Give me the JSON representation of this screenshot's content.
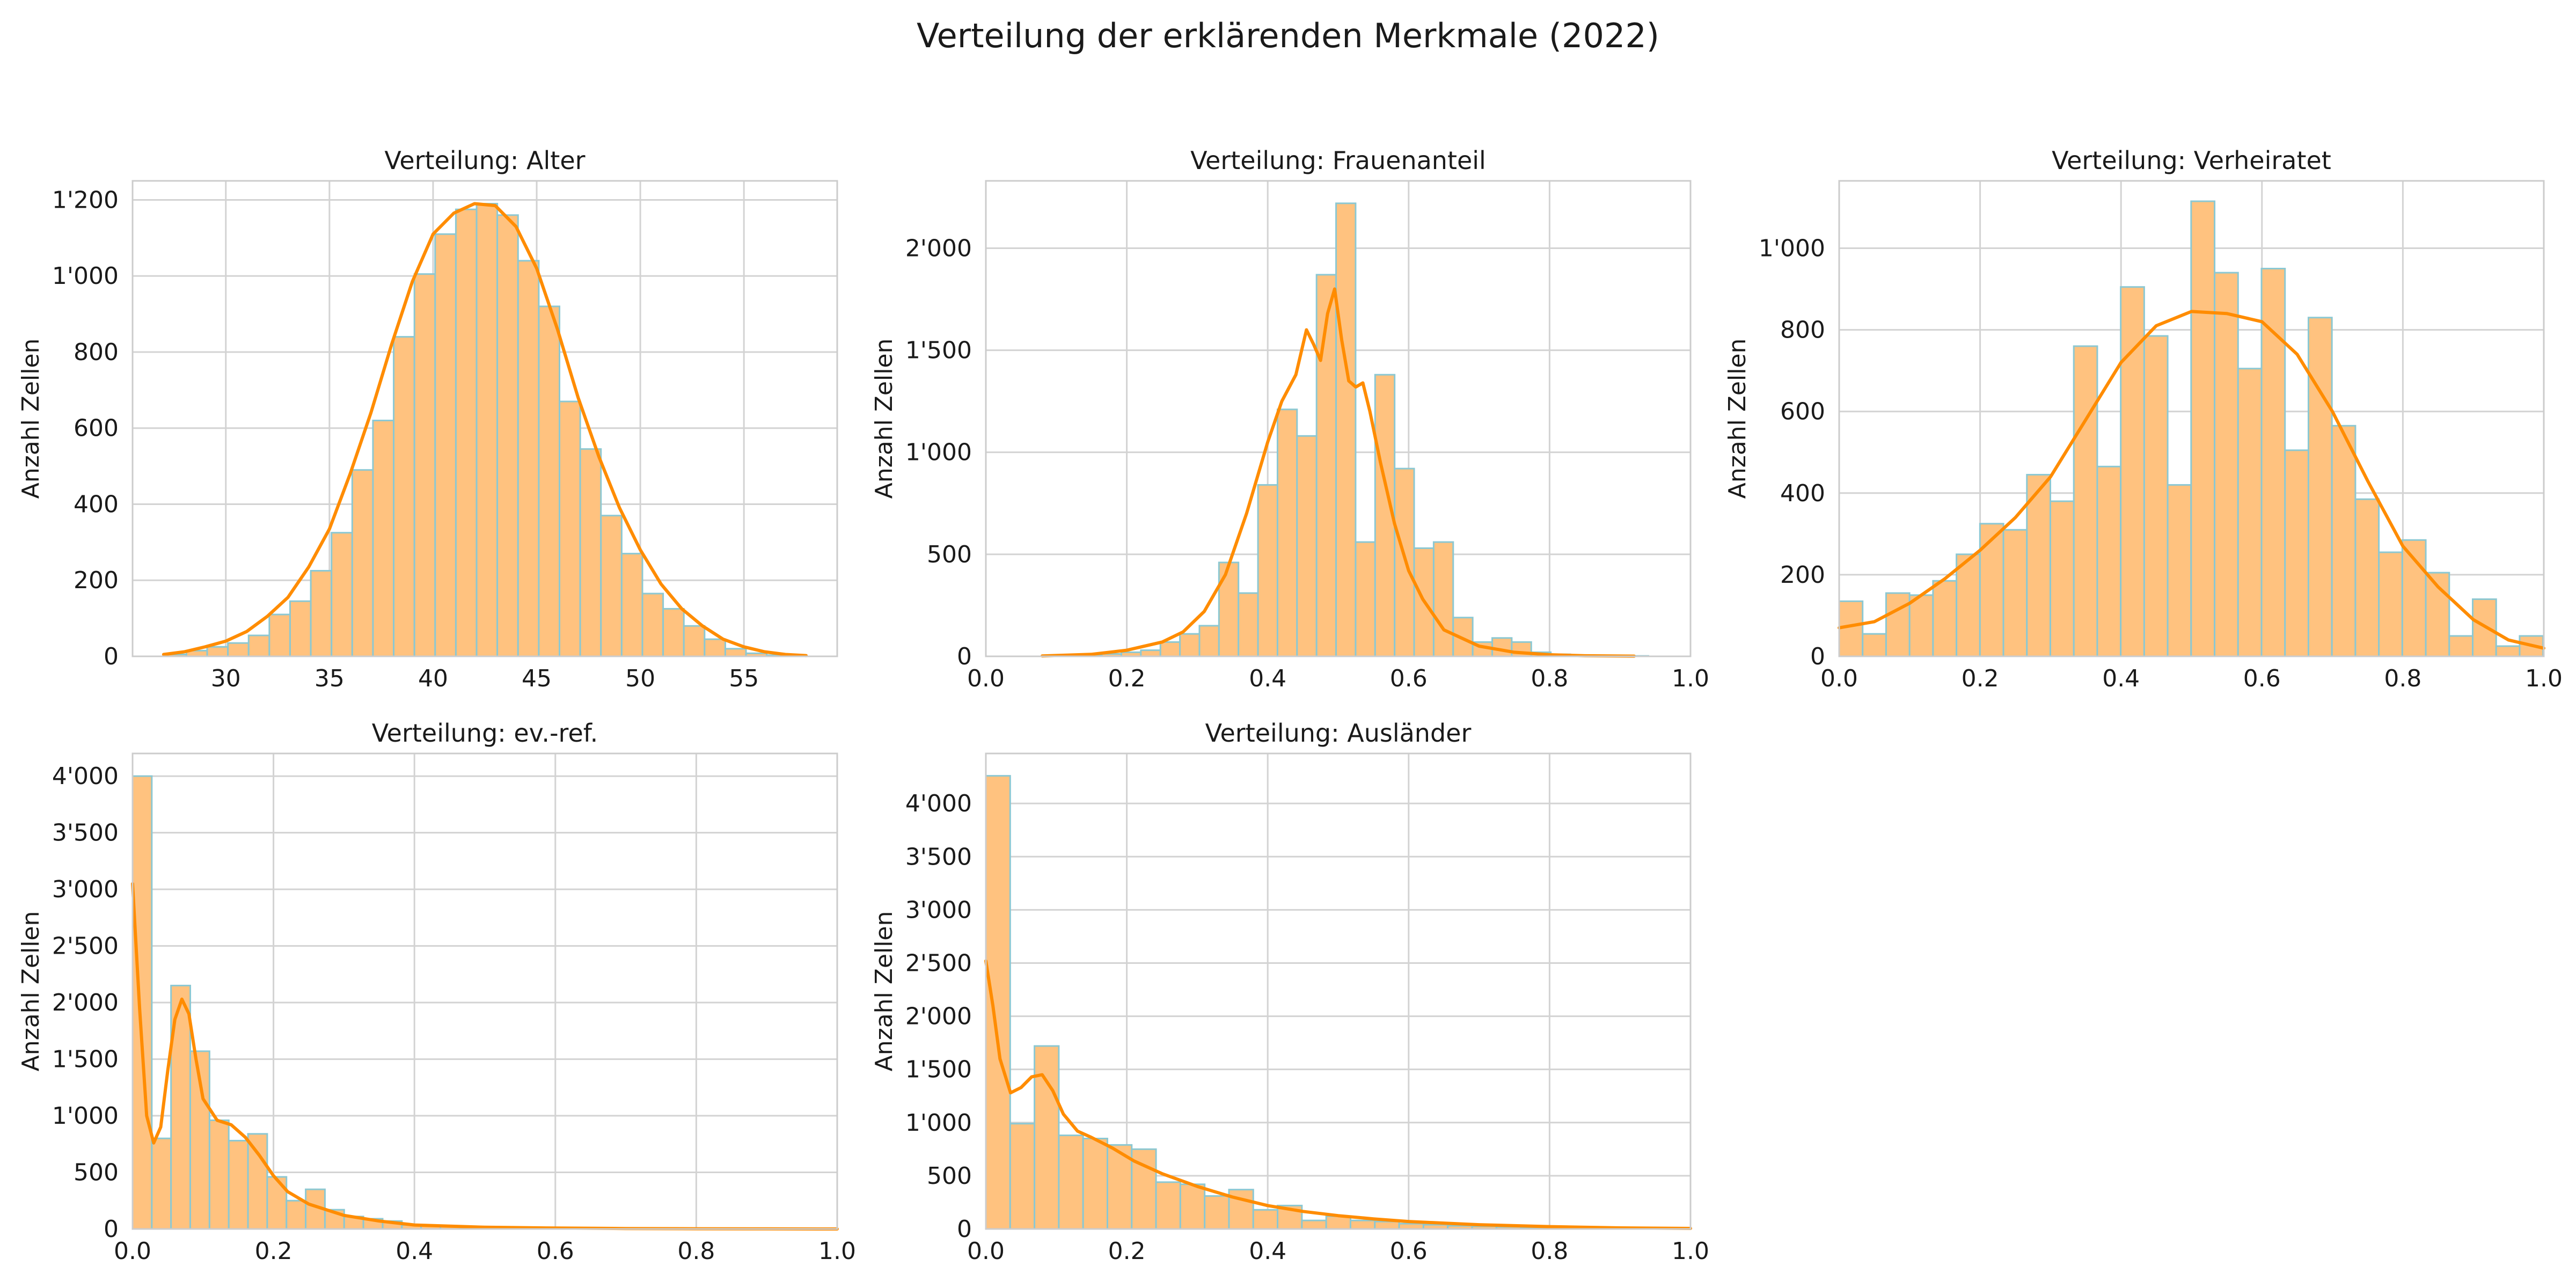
{
  "suptitle": "Verteilung der erklärenden Merkmale (2022)",
  "colors": {
    "bar_fill": "#ffc27f",
    "bar_edge": "#8cc8d2",
    "kde": "#ff8c00",
    "grid": "#d3d3d3",
    "frame": "#cccccc"
  },
  "chart_data": [
    {
      "type": "bar",
      "title": "Verteilung: Alter",
      "ylabel": "Anzahl Zellen",
      "xlim": [
        25.5,
        59.5
      ],
      "ylim": [
        0,
        1250
      ],
      "xticks": [
        30,
        35,
        40,
        45,
        50,
        55
      ],
      "xtick_labels": [
        "30",
        "35",
        "40",
        "45",
        "50",
        "55"
      ],
      "yticks": [
        0,
        200,
        400,
        600,
        800,
        1000,
        1200
      ],
      "ytick_labels": [
        "0",
        "200",
        "400",
        "600",
        "800",
        "1'000",
        "1'200"
      ],
      "bin_start": 27.1,
      "bin_width": 1.0,
      "values": [
        5,
        15,
        25,
        35,
        55,
        110,
        145,
        225,
        325,
        490,
        620,
        840,
        1005,
        1110,
        1175,
        1190,
        1160,
        1040,
        920,
        670,
        545,
        370,
        270,
        165,
        125,
        80,
        45,
        20,
        8,
        3
      ],
      "kde_x": [
        27,
        28,
        29,
        30,
        31,
        32,
        33,
        34,
        35,
        36,
        37,
        38,
        39,
        40,
        41,
        42,
        43,
        44,
        45,
        46,
        47,
        48,
        49,
        50,
        51,
        52,
        53,
        54,
        55,
        56,
        57,
        58
      ],
      "kde_y": [
        5,
        12,
        25,
        40,
        65,
        105,
        155,
        235,
        335,
        480,
        640,
        820,
        985,
        1110,
        1165,
        1190,
        1185,
        1130,
        1020,
        860,
        680,
        525,
        390,
        280,
        190,
        125,
        80,
        45,
        25,
        12,
        5,
        2
      ]
    },
    {
      "type": "bar",
      "title": "Verteilung: Frauenanteil",
      "ylabel": "Anzahl Zellen",
      "xlim": [
        0.0,
        1.0
      ],
      "ylim": [
        0,
        2330
      ],
      "xticks": [
        0.0,
        0.2,
        0.4,
        0.6,
        0.8,
        1.0
      ],
      "xtick_labels": [
        "0.0",
        "0.2",
        "0.4",
        "0.6",
        "0.8",
        "1.0"
      ],
      "yticks": [
        0,
        500,
        1000,
        1500,
        2000
      ],
      "ytick_labels": [
        "0",
        "500",
        "1'000",
        "1'500",
        "2'000"
      ],
      "bin_start": 0.0815,
      "bin_width": 0.0277,
      "values": [
        2,
        4,
        8,
        12,
        20,
        30,
        70,
        110,
        150,
        460,
        310,
        840,
        1210,
        1080,
        1870,
        2220,
        560,
        1380,
        920,
        530,
        560,
        190,
        70,
        90,
        70,
        20,
        10,
        5,
        2,
        2,
        2
      ],
      "kde_x": [
        0.08,
        0.15,
        0.2,
        0.25,
        0.28,
        0.31,
        0.34,
        0.37,
        0.4,
        0.42,
        0.44,
        0.455,
        0.465,
        0.475,
        0.485,
        0.495,
        0.505,
        0.515,
        0.525,
        0.535,
        0.545,
        0.56,
        0.58,
        0.6,
        0.62,
        0.65,
        0.7,
        0.75,
        0.8,
        0.85,
        0.92
      ],
      "kde_y": [
        2,
        10,
        30,
        70,
        120,
        220,
        400,
        700,
        1050,
        1250,
        1380,
        1600,
        1530,
        1450,
        1680,
        1800,
        1550,
        1350,
        1320,
        1340,
        1200,
        950,
        650,
        420,
        280,
        130,
        50,
        20,
        8,
        3,
        1
      ]
    },
    {
      "type": "bar",
      "title": "Verteilung: Verheiratet",
      "ylabel": "Anzahl Zellen",
      "xlim": [
        0.0,
        1.0
      ],
      "ylim": [
        0,
        1165
      ],
      "xticks": [
        0.0,
        0.2,
        0.4,
        0.6,
        0.8,
        1.0
      ],
      "xtick_labels": [
        "0.0",
        "0.2",
        "0.4",
        "0.6",
        "0.8",
        "1.0"
      ],
      "yticks": [
        0,
        200,
        400,
        600,
        800,
        1000
      ],
      "ytick_labels": [
        "0",
        "200",
        "400",
        "600",
        "800",
        "1'000"
      ],
      "bin_start": 0.0,
      "bin_width": 0.0333,
      "values": [
        135,
        55,
        155,
        150,
        185,
        250,
        325,
        310,
        445,
        380,
        760,
        465,
        905,
        785,
        420,
        1115,
        940,
        705,
        950,
        505,
        830,
        565,
        385,
        255,
        285,
        205,
        50,
        140,
        25,
        50
      ],
      "kde_x": [
        0.0,
        0.05,
        0.1,
        0.15,
        0.2,
        0.25,
        0.3,
        0.35,
        0.4,
        0.45,
        0.5,
        0.55,
        0.6,
        0.65,
        0.7,
        0.75,
        0.8,
        0.85,
        0.9,
        0.95,
        1.0
      ],
      "kde_y": [
        70,
        85,
        130,
        190,
        260,
        340,
        440,
        580,
        720,
        810,
        845,
        840,
        820,
        740,
        600,
        430,
        270,
        170,
        90,
        40,
        20
      ]
    },
    {
      "type": "bar",
      "title": "Verteilung: ev.-ref.",
      "ylabel": "Anzahl Zellen",
      "xlim": [
        0.0,
        1.0
      ],
      "ylim": [
        0,
        4200
      ],
      "xticks": [
        0.0,
        0.2,
        0.4,
        0.6,
        0.8,
        1.0
      ],
      "xtick_labels": [
        "0.0",
        "0.2",
        "0.4",
        "0.6",
        "0.8",
        "1.0"
      ],
      "yticks": [
        0,
        500,
        1000,
        1500,
        2000,
        2500,
        3000,
        3500,
        4000
      ],
      "ytick_labels": [
        "0",
        "500",
        "1'000",
        "1'500",
        "2'000",
        "2'500",
        "3'000",
        "3'500",
        "4'000"
      ],
      "bin_start": 0.0,
      "bin_width": 0.0273,
      "values": [
        4000,
        800,
        2150,
        1570,
        960,
        780,
        840,
        460,
        250,
        350,
        170,
        110,
        90,
        70,
        35,
        30,
        20,
        15,
        10,
        8,
        6,
        5,
        4,
        3,
        3,
        2,
        2,
        2,
        2,
        2,
        2
      ],
      "kde_x": [
        0.0,
        0.01,
        0.02,
        0.03,
        0.04,
        0.05,
        0.06,
        0.07,
        0.08,
        0.09,
        0.1,
        0.12,
        0.14,
        0.16,
        0.18,
        0.2,
        0.22,
        0.25,
        0.3,
        0.35,
        0.4,
        0.5,
        0.6,
        0.7,
        0.8,
        0.9,
        1.0
      ],
      "kde_y": [
        3050,
        1950,
        1000,
        760,
        900,
        1400,
        1850,
        2030,
        1900,
        1500,
        1150,
        960,
        920,
        810,
        650,
        470,
        330,
        220,
        120,
        70,
        35,
        15,
        8,
        4,
        2,
        1,
        0
      ]
    },
    {
      "type": "bar",
      "title": "Verteilung: Ausländer",
      "ylabel": "Anzahl Zellen",
      "xlim": [
        0.0,
        1.0
      ],
      "ylim": [
        0,
        4470
      ],
      "xticks": [
        0.0,
        0.2,
        0.4,
        0.6,
        0.8,
        1.0
      ],
      "xtick_labels": [
        "0.0",
        "0.2",
        "0.4",
        "0.6",
        "0.8",
        "1.0"
      ],
      "yticks": [
        0,
        500,
        1000,
        1500,
        2000,
        2500,
        3000,
        3500,
        4000
      ],
      "ytick_labels": [
        "0",
        "500",
        "1'000",
        "1'500",
        "2'000",
        "2'500",
        "3'000",
        "3'500",
        "4'000"
      ],
      "bin_start": 0.0,
      "bin_width": 0.0345,
      "values": [
        4260,
        990,
        1720,
        880,
        850,
        790,
        750,
        440,
        420,
        310,
        370,
        180,
        220,
        80,
        120,
        80,
        70,
        50,
        40,
        30,
        25,
        20,
        15,
        10,
        8,
        6,
        5,
        4,
        3
      ],
      "kde_x": [
        0.0,
        0.01,
        0.02,
        0.035,
        0.05,
        0.065,
        0.08,
        0.095,
        0.11,
        0.13,
        0.15,
        0.18,
        0.21,
        0.25,
        0.3,
        0.35,
        0.4,
        0.45,
        0.5,
        0.55,
        0.6,
        0.65,
        0.7,
        0.8,
        0.9,
        1.0
      ],
      "kde_y": [
        2520,
        2100,
        1600,
        1280,
        1330,
        1430,
        1450,
        1300,
        1080,
        920,
        860,
        760,
        640,
        520,
        400,
        300,
        220,
        165,
        125,
        95,
        70,
        55,
        40,
        22,
        10,
        5
      ]
    }
  ]
}
